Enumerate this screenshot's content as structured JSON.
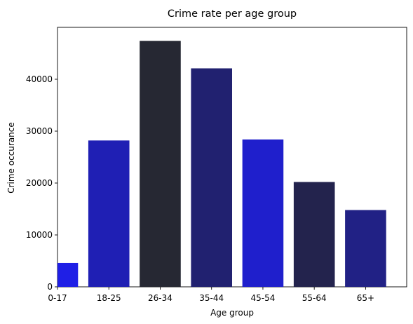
{
  "chart_data": {
    "type": "bar",
    "title": "Crime rate per age group",
    "xlabel": "Age group",
    "ylabel": "Crime occurance",
    "categories": [
      "0-17",
      "18-25",
      "26-34",
      "35-44",
      "45-54",
      "55-64",
      "65+"
    ],
    "values": [
      4600,
      28200,
      47400,
      42100,
      28400,
      20200,
      14800
    ],
    "colors": [
      "#1f1fe6",
      "#1f1fb4",
      "#262833",
      "#212170",
      "#1f1fcc",
      "#23234d",
      "#212185"
    ],
    "ylim": [
      0,
      50000
    ],
    "yticks": [
      0,
      10000,
      20000,
      30000,
      40000
    ],
    "yticklabels": [
      "0",
      "10000",
      "20000",
      "30000",
      "40000"
    ],
    "grid": false,
    "legend": "none"
  }
}
